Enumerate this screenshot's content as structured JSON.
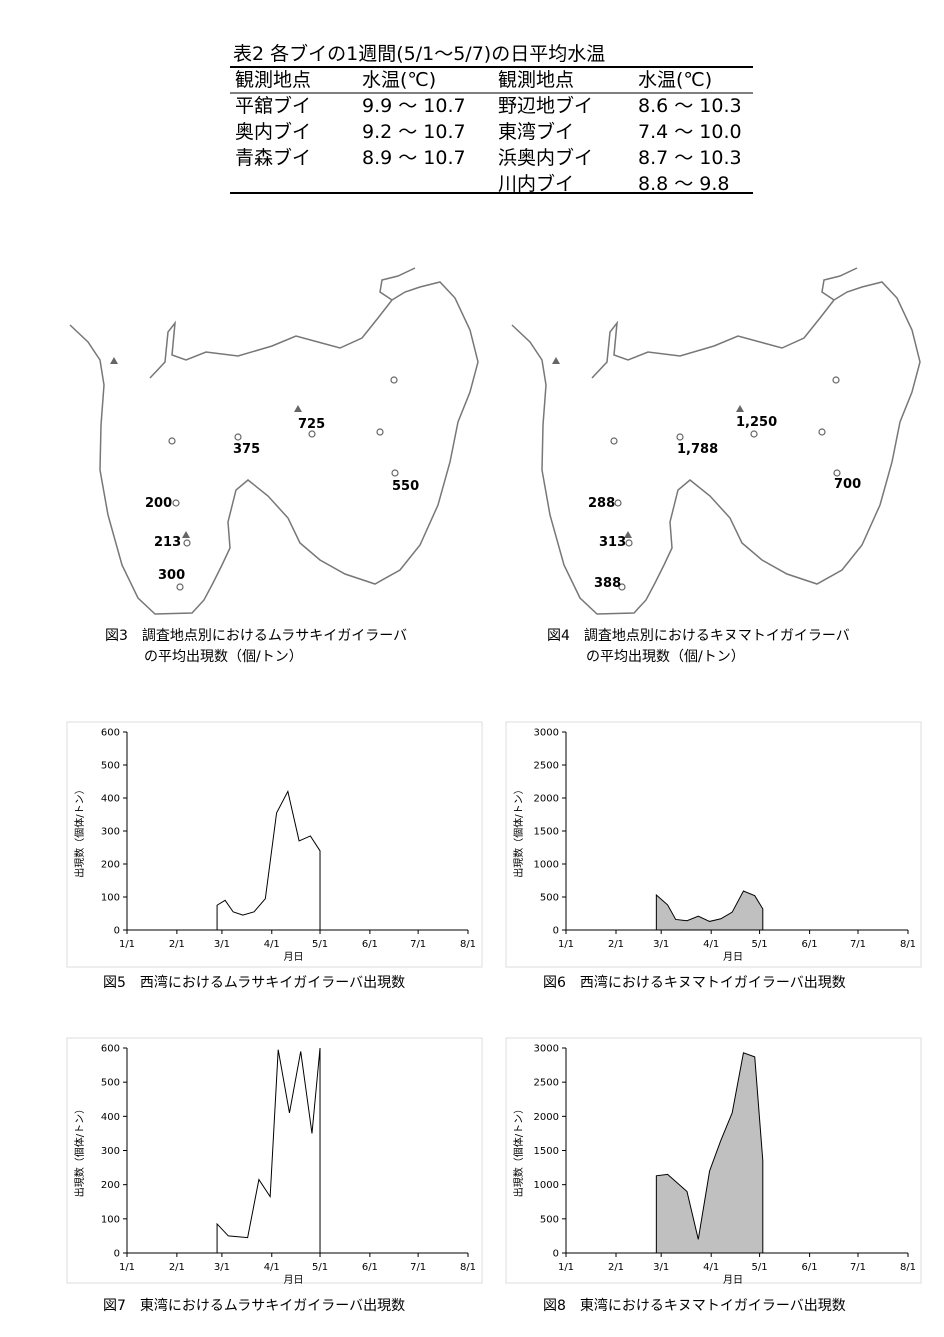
{
  "table": {
    "title": "表2 各ブイの1週間(5/1～5/7)の日平均水温",
    "header": [
      "観測地点",
      "水温(℃)",
      "観測地点",
      "水温(℃)"
    ],
    "rows": [
      [
        "平舘ブイ",
        "9.9 ～ 10.7",
        "野辺地ブイ",
        "8.6 ～ 10.3"
      ],
      [
        "奥内ブイ",
        "9.2 ～ 10.7",
        "東湾ブイ",
        "7.4 ～ 10.0"
      ],
      [
        "青森ブイ",
        "8.9 ～ 10.7",
        "浜奥内ブイ",
        "8.7 ～ 10.3"
      ],
      [
        null,
        null,
        "川内ブイ",
        "8.8 ～ 9.8"
      ]
    ]
  },
  "maps": [
    {
      "labels": [
        "725",
        "375",
        "550",
        "200",
        "213",
        "300"
      ],
      "caption": [
        "図3　調査地点別におけるムラサキイガイラーバ",
        "の平均出現数（個/トン）"
      ]
    },
    {
      "labels": [
        "1,250",
        "1,788",
        "700",
        "288",
        "313",
        "388"
      ],
      "caption": [
        "図4　調査地点別におけるキヌマトイガイラーバ",
        "の平均出現数（個/トン）"
      ]
    }
  ],
  "chart_data": [
    {
      "type": "area",
      "title": "図5　西湾におけるムラサキイガイラーバ出現数",
      "xlabel": "月日",
      "ylabel": "出現数（個体/トン）",
      "color": "#ffffff",
      "x": [
        "2/26",
        "3/3",
        "3/8",
        "3/14",
        "3/21",
        "3/28",
        "4/4",
        "4/11",
        "4/18",
        "4/25",
        "5/1"
      ],
      "values": [
        75,
        90,
        55,
        45,
        55,
        95,
        355,
        420,
        270,
        285,
        240
      ],
      "xlim": [
        "1/1",
        "8/1"
      ],
      "xticks": [
        "1/1",
        "2/1",
        "3/1",
        "4/1",
        "5/1",
        "6/1",
        "7/1",
        "8/1"
      ],
      "ylim": [
        0,
        600
      ],
      "yticks": [
        0,
        100,
        200,
        300,
        400,
        500,
        600
      ]
    },
    {
      "type": "area",
      "title": "図6　西湾におけるキヌマトイガイラーバ出現数",
      "xlabel": "月日",
      "ylabel": "出現数（個体/トン）",
      "color": "#c0c0c0",
      "x": [
        "2/26",
        "3/5",
        "3/10",
        "3/17",
        "3/24",
        "3/31",
        "4/7",
        "4/14",
        "4/21",
        "4/28",
        "5/3"
      ],
      "values": [
        530,
        380,
        160,
        140,
        210,
        130,
        170,
        270,
        590,
        520,
        320
      ],
      "xlim": [
        "1/1",
        "8/1"
      ],
      "xticks": [
        "1/1",
        "2/1",
        "3/1",
        "4/1",
        "5/1",
        "6/1",
        "7/1",
        "8/1"
      ],
      "ylim": [
        0,
        3000
      ],
      "yticks": [
        0,
        500,
        1000,
        1500,
        2000,
        2500,
        3000
      ]
    },
    {
      "type": "area",
      "title": "図7　東湾におけるムラサキイガイラーバ出現数",
      "xlabel": "月日",
      "ylabel": "出現数（個体/トン）",
      "color": "#ffffff",
      "x": [
        "2/26",
        "3/5",
        "3/17",
        "3/24",
        "3/31",
        "4/5",
        "4/12",
        "4/19",
        "4/26",
        "5/1"
      ],
      "values": [
        85,
        50,
        45,
        215,
        165,
        595,
        410,
        590,
        350,
        600
      ],
      "xlim": [
        "1/1",
        "8/1"
      ],
      "xticks": [
        "1/1",
        "2/1",
        "3/1",
        "4/1",
        "5/1",
        "6/1",
        "7/1",
        "8/1"
      ],
      "ylim": [
        0,
        600
      ],
      "yticks": [
        0,
        100,
        200,
        300,
        400,
        500,
        600
      ]
    },
    {
      "type": "area",
      "title": "図8　東湾におけるキヌマトイガイラーバ出現数",
      "xlabel": "月日",
      "ylabel": "出現数（個体/トン）",
      "color": "#c0c0c0",
      "x": [
        "2/26",
        "3/5",
        "3/17",
        "3/24",
        "3/31",
        "4/7",
        "4/14",
        "4/21",
        "4/28",
        "5/3"
      ],
      "values": [
        1130,
        1150,
        900,
        200,
        1200,
        1650,
        2050,
        2930,
        2870,
        1350
      ],
      "xlim": [
        "1/1",
        "8/1"
      ],
      "xticks": [
        "1/1",
        "2/1",
        "3/1",
        "4/1",
        "5/1",
        "6/1",
        "7/1",
        "8/1"
      ],
      "ylim": [
        0,
        3000
      ],
      "yticks": [
        0,
        500,
        1000,
        1500,
        2000,
        2500,
        3000
      ]
    }
  ]
}
